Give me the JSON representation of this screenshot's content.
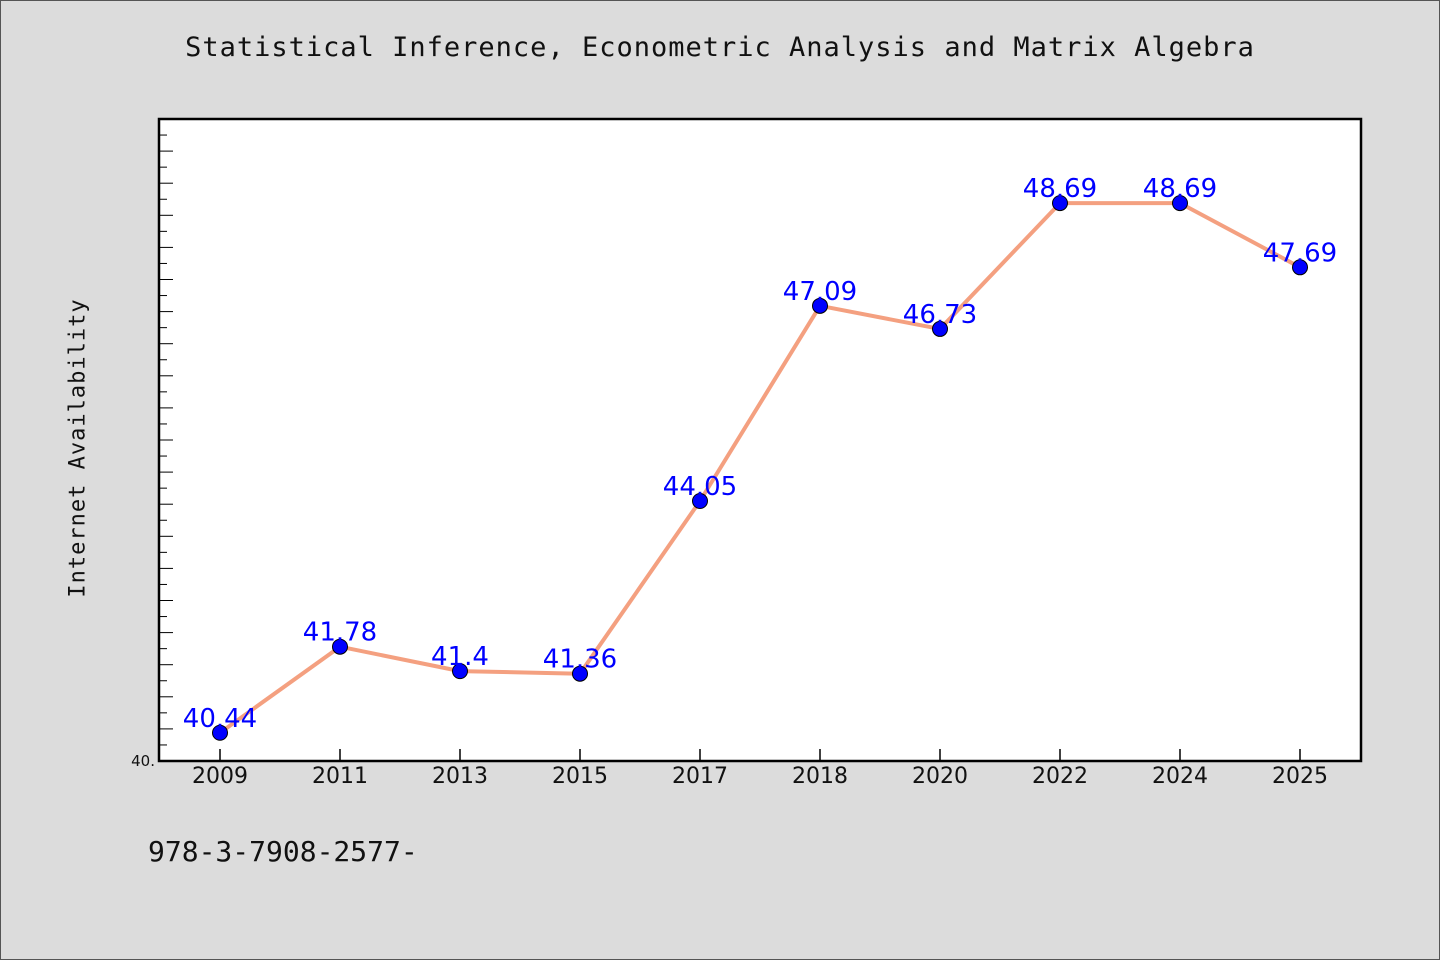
{
  "chart_data": {
    "type": "line",
    "title": "Statistical Inference, Econometric Analysis and Matrix Algebra",
    "xlabel": "",
    "ylabel": "Internet Availability",
    "categories": [
      "2009",
      "2011",
      "2013",
      "2015",
      "2017",
      "2018",
      "2020",
      "2022",
      "2024",
      "2025"
    ],
    "series": [
      {
        "values": [
          40.44,
          41.78,
          41.4,
          41.36,
          44.05,
          47.09,
          46.73,
          48.69,
          48.69,
          47.69
        ],
        "labels": [
          "40.44",
          "41.78",
          "41.4",
          "41.36",
          "44.05",
          "47.09",
          "46.73",
          "48.69",
          "48.69",
          "47.69"
        ]
      }
    ],
    "ylim": [
      40.0,
      50.0
    ],
    "ytick_label": "40.",
    "line_color": "#f4a080",
    "marker_color": "#0000ff",
    "label_color": "#0000ff",
    "grid": false
  },
  "footnote": "978-3-7908-2577-"
}
